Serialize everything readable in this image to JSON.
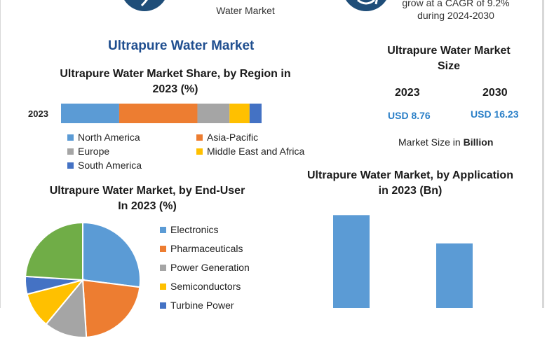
{
  "header": {
    "left_caption": "Water Market",
    "right_caption_line1": "grow at a CAGR of 9.2%",
    "right_caption_line2": "during 2024-2030"
  },
  "main_title": "Ultrapure Water Market",
  "size_panel": {
    "title_line1": "Ultrapure Water Market",
    "title_line2": "Size",
    "year_1": "2023",
    "year_2": "2030",
    "value_1": "USD 8.76",
    "value_2": "USD 16.23",
    "note_prefix": "Market Size in",
    "note_unit": "Billion"
  },
  "colors": {
    "north_america": "#5b9bd5",
    "asia_pacific": "#ed7d31",
    "europe": "#a5a5a5",
    "mea": "#ffc000",
    "south_america": "#4472c4",
    "pie_green": "#70ad47",
    "app_bar": "#5b9bd5"
  },
  "chart_data": [
    {
      "type": "bar",
      "orientation": "horizontal-stacked",
      "title_line1": "Ultrapure Water Market Share, by Region in",
      "title_line2": "2023 (%)",
      "categories": [
        "2023"
      ],
      "series": [
        {
          "name": "North America",
          "values": [
            29
          ],
          "color": "#5b9bd5"
        },
        {
          "name": "Asia-Pacific",
          "values": [
            39
          ],
          "color": "#ed7d31"
        },
        {
          "name": "Europe",
          "values": [
            16
          ],
          "color": "#a5a5a5"
        },
        {
          "name": "Middle East and Africa",
          "values": [
            10
          ],
          "color": "#ffc000"
        },
        {
          "name": "South America",
          "values": [
            6
          ],
          "color": "#4472c4"
        }
      ],
      "xlim": [
        0,
        100
      ],
      "legend": "bottom"
    },
    {
      "type": "pie",
      "title_line1": "Ultrapure Water Market, by End-User",
      "title_line2": "In 2023 (%)",
      "slices": [
        {
          "name": "Electronics",
          "value": 27,
          "color": "#5b9bd5"
        },
        {
          "name": "Pharmaceuticals",
          "value": 22,
          "color": "#ed7d31"
        },
        {
          "name": "Power Generation",
          "value": 12,
          "color": "#a5a5a5"
        },
        {
          "name": "Semiconductors",
          "value": 10,
          "color": "#ffc000"
        },
        {
          "name": "Turbine Power",
          "value": 5,
          "color": "#4472c4"
        },
        {
          "name": "",
          "value": 24,
          "color": "#70ad47"
        }
      ],
      "legend": "right"
    },
    {
      "type": "bar",
      "title_line1": "Ultrapure Water Market, by Application",
      "title_line2": "in 2023 (Bn)",
      "categories": [
        "",
        ""
      ],
      "values": [
        4.6,
        3.2
      ],
      "ylim": [
        0,
        5.2
      ],
      "color": "#5b9bd5"
    }
  ]
}
